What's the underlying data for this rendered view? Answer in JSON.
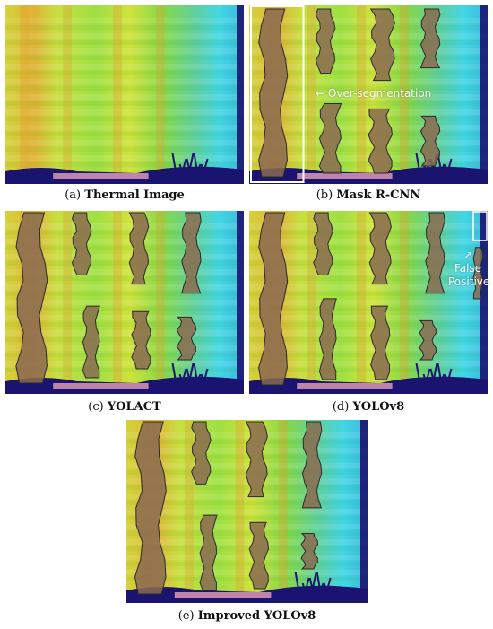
{
  "figure": {
    "panels": [
      {
        "id": "a",
        "label": "(a)",
        "name": "Thermal Image"
      },
      {
        "id": "b",
        "label": "(b)",
        "name": "Mask R-CNN"
      },
      {
        "id": "c",
        "label": "(c)",
        "name": "YOLACT"
      },
      {
        "id": "d",
        "label": "(d)",
        "name": "YOLOv8"
      },
      {
        "id": "e",
        "label": "(e)",
        "name": "Improved YOLOv8"
      }
    ],
    "annotations": {
      "over_segmentation": "Over-segmentation",
      "false_positive_line1": "False",
      "false_positive_line2": "Positive"
    }
  },
  "colors": {
    "thermal_yellow": "#d8e43a",
    "thermal_green": "#6fd24a",
    "thermal_orange": "#e0a030",
    "thermal_cyan": "#48d8e8",
    "mask_fill": "#8a6a50",
    "mask_stroke": "#2a2a2a",
    "ground_navy": "#1a1470"
  }
}
